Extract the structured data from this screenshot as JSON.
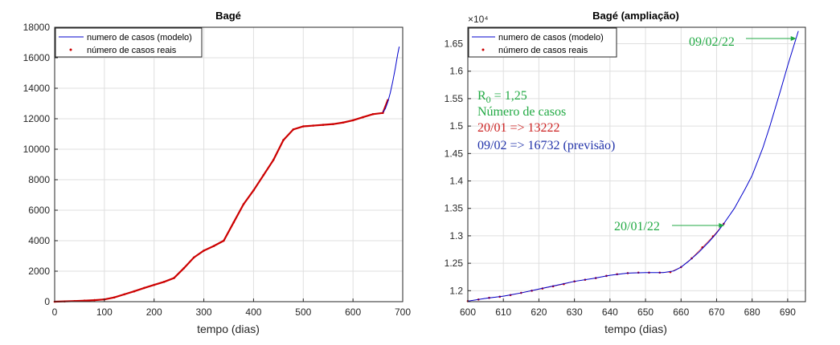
{
  "chart_data": [
    {
      "type": "line",
      "title": "Bagé",
      "xlabel": "tempo (dias)",
      "ylabel": "",
      "xlim": [
        0,
        700
      ],
      "ylim": [
        0,
        18000
      ],
      "xticks": [
        0,
        100,
        200,
        300,
        400,
        500,
        600,
        700
      ],
      "yticks": [
        0,
        2000,
        4000,
        6000,
        8000,
        10000,
        12000,
        14000,
        16000,
        18000
      ],
      "grid": true,
      "legend_position": "top-left",
      "series": [
        {
          "name": "numero de casos (modelo)",
          "color": "#0000cc",
          "style": "line",
          "x": [
            660,
            665,
            670,
            675,
            680,
            685,
            690,
            693
          ],
          "y": [
            12420,
            12650,
            13100,
            13700,
            14450,
            15300,
            16250,
            16732
          ]
        },
        {
          "name": "número de casos reais",
          "color": "#cc0000",
          "style": "markers",
          "x": [
            0,
            20,
            40,
            60,
            80,
            100,
            120,
            140,
            160,
            180,
            200,
            220,
            240,
            260,
            280,
            300,
            320,
            340,
            360,
            380,
            400,
            420,
            440,
            460,
            480,
            500,
            520,
            540,
            560,
            580,
            600,
            620,
            640,
            660,
            670
          ],
          "y": [
            0,
            20,
            40,
            70,
            100,
            150,
            280,
            480,
            680,
            900,
            1100,
            1300,
            1550,
            2200,
            2900,
            3350,
            3650,
            4000,
            5200,
            6400,
            7300,
            8300,
            9300,
            10600,
            11300,
            11500,
            11550,
            11600,
            11650,
            11750,
            11900,
            12100,
            12300,
            12380,
            13222
          ]
        }
      ]
    },
    {
      "type": "line",
      "title": "Bagé (ampliação)",
      "xlabel": "tempo (dias)",
      "ylabel": "",
      "exponent_label": "×10⁴",
      "xlim": [
        600,
        695
      ],
      "ylim": [
        1.18,
        1.68
      ],
      "xticks": [
        600,
        610,
        620,
        630,
        640,
        650,
        660,
        670,
        680,
        690
      ],
      "yticks": [
        1.2,
        1.25,
        1.3,
        1.35,
        1.4,
        1.45,
        1.5,
        1.55,
        1.6,
        1.65
      ],
      "grid": true,
      "legend_position": "top-left",
      "series": [
        {
          "name": "numero de casos (modelo)",
          "color": "#0000cc",
          "style": "line",
          "x": [
            600,
            605,
            610,
            615,
            620,
            625,
            630,
            635,
            640,
            645,
            650,
            655,
            658,
            660,
            662,
            665,
            668,
            670,
            672,
            675,
            678,
            680,
            683,
            685,
            688,
            690,
            693
          ],
          "y": [
            1.181,
            1.186,
            1.19,
            1.196,
            1.203,
            1.21,
            1.217,
            1.222,
            1.228,
            1.232,
            1.233,
            1.233,
            1.236,
            1.243,
            1.253,
            1.27,
            1.29,
            1.305,
            1.322,
            1.35,
            1.385,
            1.41,
            1.46,
            1.5,
            1.565,
            1.61,
            1.673
          ]
        },
        {
          "name": "número de casos reais",
          "color": "#cc0000",
          "style": "markers",
          "x": [
            600,
            603,
            606,
            609,
            612,
            615,
            618,
            621,
            624,
            627,
            630,
            633,
            636,
            639,
            642,
            645,
            648,
            651,
            654,
            657,
            660,
            663,
            666,
            669,
            672
          ],
          "y": [
            1.181,
            1.184,
            1.187,
            1.189,
            1.192,
            1.196,
            1.2,
            1.204,
            1.208,
            1.212,
            1.217,
            1.22,
            1.223,
            1.227,
            1.23,
            1.232,
            1.233,
            1.233,
            1.233,
            1.234,
            1.243,
            1.259,
            1.279,
            1.299,
            1.322
          ]
        }
      ],
      "annotations": {
        "r0": {
          "prefix": "R",
          "subscript": "0",
          "suffix": " = 1,25",
          "color": "#22aa44"
        },
        "heading": {
          "text": "Número de casos",
          "color": "#22aa44"
        },
        "current": {
          "text": "20/01 => 13222",
          "color": "#cc2222"
        },
        "forecast": {
          "text": "09/02 => 16732 (previsão)",
          "color": "#2233aa"
        },
        "arrow_top": {
          "label": "09/02/22",
          "x": 692,
          "y": 1.673,
          "color": "#22aa44"
        },
        "arrow_mid": {
          "label": "20/01/22",
          "x": 672,
          "y": 1.322,
          "color": "#22aa44"
        }
      }
    }
  ]
}
